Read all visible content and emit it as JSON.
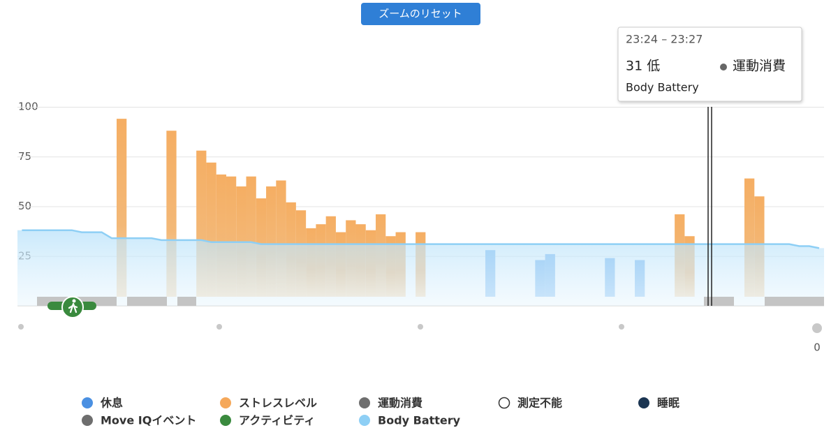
{
  "chart_data": {
    "type": "bar",
    "reset_button": "ズームのリセット",
    "tooltip": {
      "time": "23:24 – 23:27",
      "value": "31 低",
      "category": "運動消費",
      "series": "Body Battery"
    },
    "ylim": [
      0,
      100
    ],
    "yticks": [
      25,
      50,
      75,
      100
    ],
    "y2ticks": [
      0
    ],
    "grid": true,
    "series": [
      {
        "name": "ストレスレベル",
        "color": "#f5ae63",
        "type": "bar",
        "values": [
          null,
          null,
          null,
          null,
          null,
          null,
          null,
          null,
          null,
          null,
          94,
          null,
          null,
          null,
          null,
          88,
          null,
          null,
          78,
          72,
          66,
          65,
          60,
          65,
          54,
          60,
          63,
          52,
          48,
          39,
          41,
          45,
          37,
          43,
          41,
          38,
          46,
          35,
          37,
          null,
          37,
          null,
          null,
          null,
          null,
          null,
          null,
          null,
          null,
          null,
          null,
          null,
          null,
          null,
          null,
          null,
          null,
          null,
          null,
          null,
          null,
          null,
          null,
          null,
          null,
          null,
          46,
          35,
          null,
          null,
          null,
          null,
          null,
          64,
          55,
          null,
          null,
          null,
          null,
          null,
          null
        ]
      },
      {
        "name": "休息",
        "color": "#7ab6ee",
        "type": "bar",
        "values": [
          null,
          null,
          null,
          null,
          null,
          null,
          null,
          null,
          null,
          null,
          null,
          null,
          null,
          null,
          null,
          null,
          null,
          null,
          null,
          null,
          null,
          null,
          null,
          null,
          null,
          null,
          null,
          null,
          null,
          null,
          null,
          null,
          null,
          null,
          null,
          null,
          null,
          null,
          null,
          null,
          null,
          null,
          null,
          null,
          null,
          null,
          null,
          28,
          null,
          null,
          null,
          null,
          23,
          26,
          null,
          null,
          null,
          null,
          null,
          24,
          null,
          null,
          23,
          null,
          null,
          null,
          null,
          null,
          null,
          null,
          null,
          null,
          null,
          null,
          null,
          null,
          null,
          null,
          null,
          null,
          null
        ]
      },
      {
        "name": "Body Battery",
        "color": "#8ecff5",
        "type": "line",
        "values": [
          38,
          38,
          38,
          38,
          38,
          38,
          37,
          37,
          37,
          34,
          34,
          34,
          34,
          34,
          33,
          33,
          33,
          33,
          33,
          32,
          32,
          32,
          32,
          32,
          31,
          31,
          31,
          31,
          31,
          31,
          31,
          31,
          31,
          31,
          31,
          31,
          31,
          31,
          31,
          31,
          31,
          31,
          31,
          31,
          31,
          31,
          31,
          31,
          31,
          31,
          31,
          31,
          31,
          31,
          31,
          31,
          31,
          31,
          31,
          31,
          31,
          31,
          31,
          31,
          31,
          31,
          31,
          31,
          31,
          31,
          31,
          31,
          31,
          31,
          31,
          31,
          31,
          31,
          30,
          30,
          29
        ]
      }
    ],
    "legend": [
      {
        "name": "休息",
        "color": "#4a90e2"
      },
      {
        "name": "ストレスレベル",
        "color": "#f5a85a"
      },
      {
        "name": "運動消費",
        "color": "#6e6e6e"
      },
      {
        "name": "測定不能",
        "color": "none"
      },
      {
        "name": "睡眠",
        "color": "#1b3552"
      },
      {
        "name": "Move IQイベント",
        "color": "#6e6e6e"
      },
      {
        "name": "アクティビティ",
        "color": "#3a8a3e"
      },
      {
        "name": "Body Battery",
        "color": "#8ecff5"
      }
    ]
  }
}
